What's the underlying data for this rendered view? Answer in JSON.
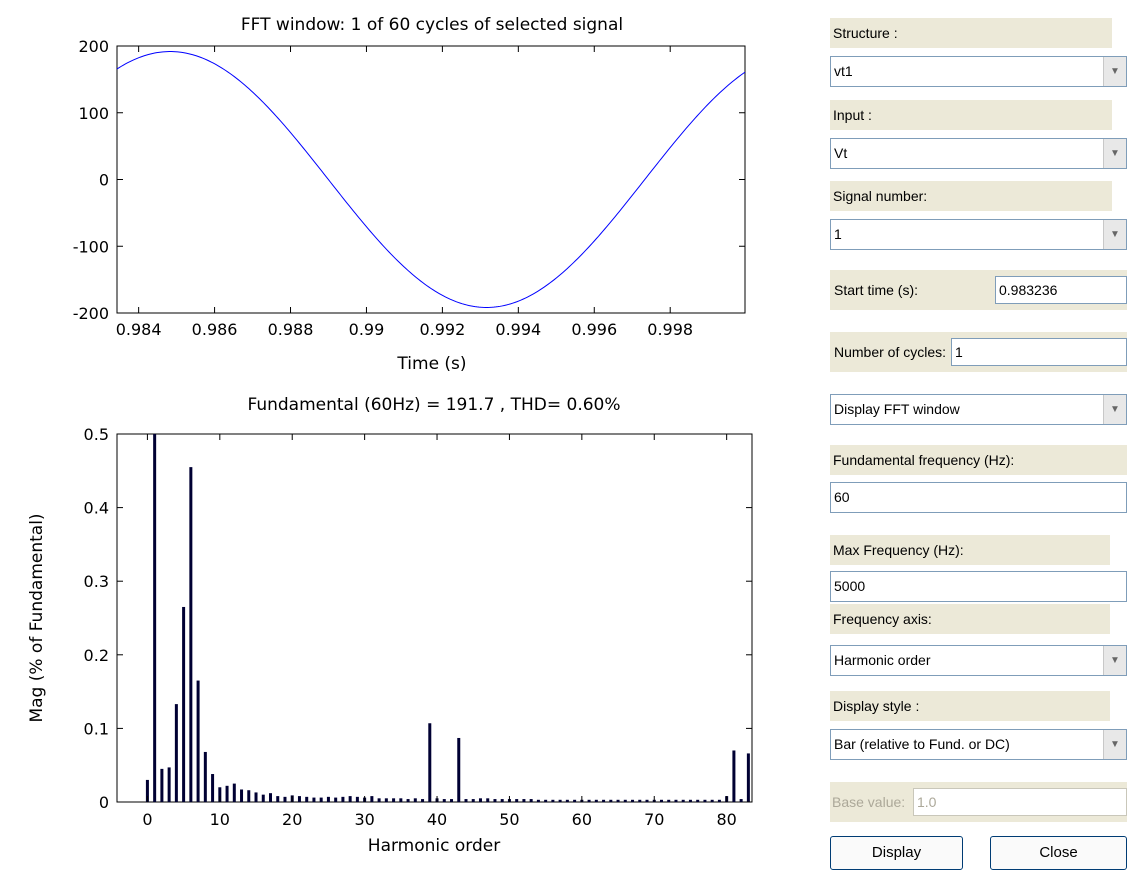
{
  "plot_top": {
    "chart_data": {
      "type": "line",
      "title": "FFT window: 1 of 60 cycles of selected signal",
      "xlabel": "Time (s)",
      "ylabel": "",
      "xlim": [
        0.98343,
        0.99997
      ],
      "ylim": [
        -200,
        200
      ],
      "xticks": [
        0.984,
        0.986,
        0.988,
        0.99,
        0.992,
        0.994,
        0.996,
        0.998
      ],
      "xtick_labels": [
        "0.984",
        "0.986",
        "0.988",
        "0.99",
        "0.992",
        "0.994",
        "0.996",
        "0.998"
      ],
      "yticks": [
        -200,
        -100,
        0,
        100,
        200
      ],
      "ytick_labels": [
        "-200",
        "-100",
        "0",
        "100",
        "200"
      ],
      "grid": false,
      "series": [
        {
          "amplitude": 191.7,
          "frequency_hz": 60,
          "peak_time_s": 0.98483,
          "color": "#0000ff"
        }
      ]
    }
  },
  "plot_bottom": {
    "chart_data": {
      "type": "bar",
      "title": "Fundamental (60Hz) = 191.7 , THD= 0.60%",
      "xlabel": "Harmonic order",
      "ylabel": "Mag (% of Fundamental)",
      "xlim": [
        -4.2,
        83.5
      ],
      "ylim": [
        0,
        0.5
      ],
      "xticks": [
        0,
        10,
        20,
        30,
        40,
        50,
        60,
        70,
        80
      ],
      "xtick_labels": [
        "0",
        "10",
        "20",
        "30",
        "40",
        "50",
        "60",
        "70",
        "80"
      ],
      "yticks": [
        0,
        0.1,
        0.2,
        0.3,
        0.4,
        0.5
      ],
      "ytick_labels": [
        "0",
        "0.1",
        "0.2",
        "0.3",
        "0.4",
        "0.5"
      ],
      "grid": false,
      "bar_color": "#000033",
      "x": [
        0,
        1,
        2,
        3,
        4,
        5,
        6,
        7,
        8,
        9,
        10,
        11,
        12,
        13,
        14,
        15,
        16,
        17,
        18,
        19,
        20,
        21,
        22,
        23,
        24,
        25,
        26,
        27,
        28,
        29,
        30,
        31,
        32,
        33,
        34,
        35,
        36,
        37,
        38,
        39,
        40,
        41,
        42,
        43,
        44,
        45,
        46,
        47,
        48,
        49,
        50,
        51,
        52,
        53,
        54,
        55,
        56,
        57,
        58,
        59,
        60,
        61,
        62,
        63,
        64,
        65,
        66,
        67,
        68,
        69,
        70,
        71,
        72,
        73,
        74,
        75,
        76,
        77,
        78,
        79,
        80,
        81,
        82,
        83
      ],
      "values": [
        0.03,
        0.5,
        0.045,
        0.047,
        0.133,
        0.265,
        0.455,
        0.165,
        0.068,
        0.038,
        0.02,
        0.022,
        0.025,
        0.017,
        0.016,
        0.013,
        0.01,
        0.012,
        0.008,
        0.007,
        0.009,
        0.008,
        0.007,
        0.006,
        0.006,
        0.007,
        0.006,
        0.007,
        0.008,
        0.007,
        0.006,
        0.008,
        0.005,
        0.005,
        0.005,
        0.005,
        0.004,
        0.005,
        0.004,
        0.107,
        0.005,
        0.004,
        0.004,
        0.087,
        0.004,
        0.004,
        0.005,
        0.005,
        0.004,
        0.004,
        0.004,
        0.004,
        0.004,
        0.004,
        0.003,
        0.003,
        0.003,
        0.003,
        0.003,
        0.003,
        0.003,
        0.003,
        0.003,
        0.003,
        0.003,
        0.003,
        0.003,
        0.003,
        0.003,
        0.003,
        0.003,
        0.003,
        0.003,
        0.003,
        0.003,
        0.003,
        0.003,
        0.003,
        0.003,
        0.003,
        0.008,
        0.07,
        0.004,
        0.066
      ]
    }
  },
  "panel": {
    "structure_label": "Structure :",
    "structure_value": "vt1",
    "input_label": "Input :",
    "input_value": "Vt",
    "signal_label": "Signal number:",
    "signal_value": "1",
    "start_time_label": "Start time (s):",
    "start_time_value": "0.983236",
    "cycles_label": "Number of cycles:",
    "cycles_value": "1",
    "display_mode_value": "Display FFT window",
    "fund_freq_label": "Fundamental frequency (Hz):",
    "fund_freq_value": "60",
    "max_freq_label": "Max Frequency (Hz):",
    "max_freq_value": "5000",
    "freq_axis_label": "Frequency axis:",
    "freq_axis_value": "Harmonic order",
    "display_style_label": "Display style :",
    "display_style_value": "Bar (relative to Fund. or DC)",
    "base_value_label": "Base value:",
    "base_value_value": "1.0",
    "display_button": "Display",
    "close_button": "Close",
    "dropdown_arrow": "▼"
  }
}
